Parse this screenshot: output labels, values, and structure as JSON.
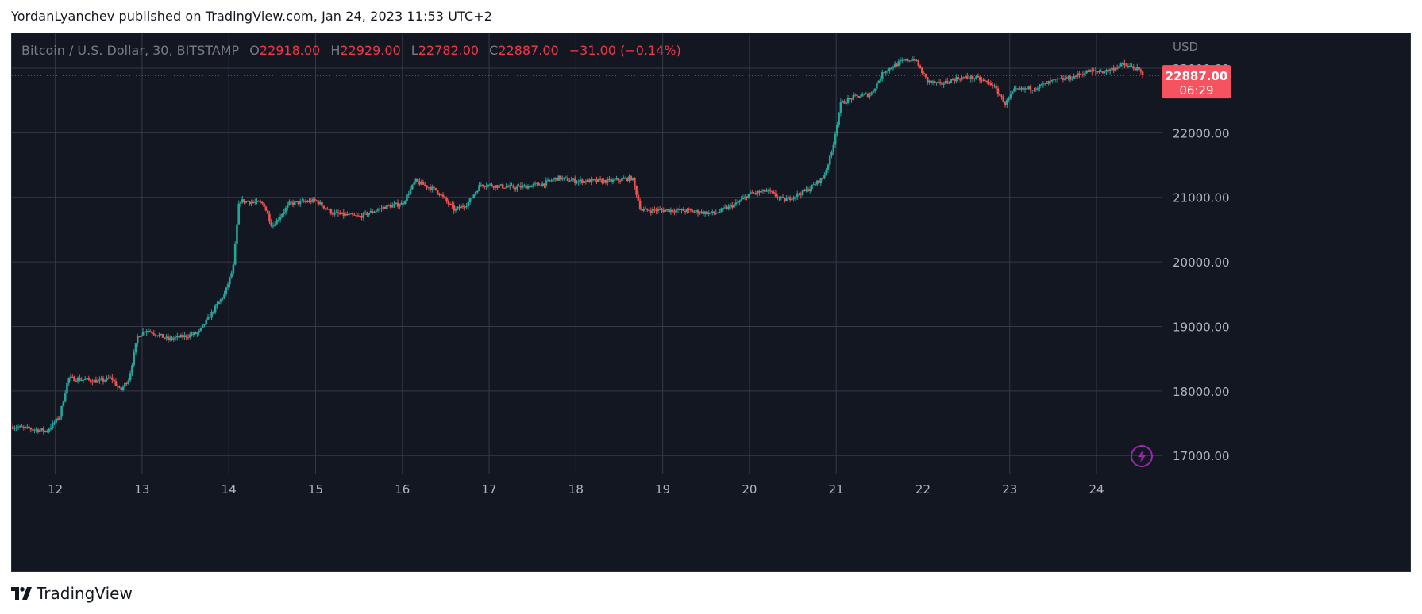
{
  "header": {
    "publish_text": "YordanLyanchev published on TradingView.com, Jan 24, 2023 11:53 UTC+2"
  },
  "legend": {
    "symbol": "Bitcoin / U.S. Dollar, 30, BITSTAMP",
    "open_label": "O",
    "open_value": "22918.00",
    "high_label": "H",
    "high_value": "22929.00",
    "low_label": "L",
    "low_value": "22782.00",
    "close_label": "C",
    "close_value": "22887.00",
    "change": "−31.00 (−0.14%)"
  },
  "price_tag": {
    "price": "22887.00",
    "countdown": "06:29"
  },
  "footer": {
    "brand": "TradingView"
  },
  "colors": {
    "background": "#131722",
    "up": "#26a69a",
    "down": "#ef5350",
    "accent_purple": "#9c27b0"
  },
  "chart_data": {
    "type": "candlestick",
    "currency_label": "USD",
    "ylim": [
      16720,
      23540
    ],
    "yticks": [
      17000,
      18000,
      19000,
      20000,
      21000,
      22000
    ],
    "ytick_labels": [
      "17000.00",
      "18000.00",
      "19000.00",
      "20000.00",
      "21000.00",
      "22000.00"
    ],
    "xlim": [
      11.5,
      24.75
    ],
    "xticks": [
      12,
      13,
      14,
      15,
      16,
      17,
      18,
      19,
      20,
      21,
      22,
      23,
      24
    ],
    "xtick_labels": [
      "12",
      "13",
      "14",
      "15",
      "16",
      "17",
      "18",
      "19",
      "20",
      "21",
      "22",
      "23",
      "24"
    ],
    "last_price": 22887,
    "grid": true,
    "anchors": [
      [
        11.5,
        17450
      ],
      [
        11.9,
        17380
      ],
      [
        12.05,
        17600
      ],
      [
        12.15,
        18200
      ],
      [
        12.5,
        18150
      ],
      [
        12.65,
        18200
      ],
      [
        12.75,
        18000
      ],
      [
        12.85,
        18200
      ],
      [
        12.95,
        18850
      ],
      [
        13.05,
        18950
      ],
      [
        13.3,
        18800
      ],
      [
        13.5,
        18850
      ],
      [
        13.65,
        18900
      ],
      [
        13.8,
        19200
      ],
      [
        13.95,
        19500
      ],
      [
        14.05,
        19900
      ],
      [
        14.12,
        20950
      ],
      [
        14.4,
        20900
      ],
      [
        14.5,
        20550
      ],
      [
        14.7,
        20900
      ],
      [
        15.0,
        20950
      ],
      [
        15.2,
        20750
      ],
      [
        15.5,
        20700
      ],
      [
        15.8,
        20850
      ],
      [
        16.0,
        20900
      ],
      [
        16.15,
        21250
      ],
      [
        16.4,
        21100
      ],
      [
        16.6,
        20800
      ],
      [
        16.75,
        20900
      ],
      [
        16.9,
        21200
      ],
      [
        17.3,
        21150
      ],
      [
        17.6,
        21200
      ],
      [
        17.8,
        21300
      ],
      [
        18.0,
        21250
      ],
      [
        18.4,
        21250
      ],
      [
        18.65,
        21300
      ],
      [
        18.75,
        20800
      ],
      [
        18.9,
        20800
      ],
      [
        19.2,
        20800
      ],
      [
        19.6,
        20750
      ],
      [
        19.85,
        20900
      ],
      [
        20.0,
        21050
      ],
      [
        20.2,
        21100
      ],
      [
        20.4,
        20950
      ],
      [
        20.65,
        21100
      ],
      [
        20.85,
        21300
      ],
      [
        20.95,
        21700
      ],
      [
        21.05,
        22450
      ],
      [
        21.2,
        22550
      ],
      [
        21.4,
        22600
      ],
      [
        21.55,
        22950
      ],
      [
        21.75,
        23100
      ],
      [
        21.9,
        23150
      ],
      [
        22.05,
        22800
      ],
      [
        22.2,
        22750
      ],
      [
        22.4,
        22850
      ],
      [
        22.6,
        22850
      ],
      [
        22.8,
        22750
      ],
      [
        22.95,
        22450
      ],
      [
        23.05,
        22650
      ],
      [
        23.3,
        22700
      ],
      [
        23.5,
        22800
      ],
      [
        23.7,
        22850
      ],
      [
        23.9,
        22950
      ],
      [
        24.1,
        22950
      ],
      [
        24.3,
        23050
      ],
      [
        24.45,
        23000
      ],
      [
        24.55,
        22887
      ]
    ],
    "candle_interval_days": 0.0208333
  }
}
